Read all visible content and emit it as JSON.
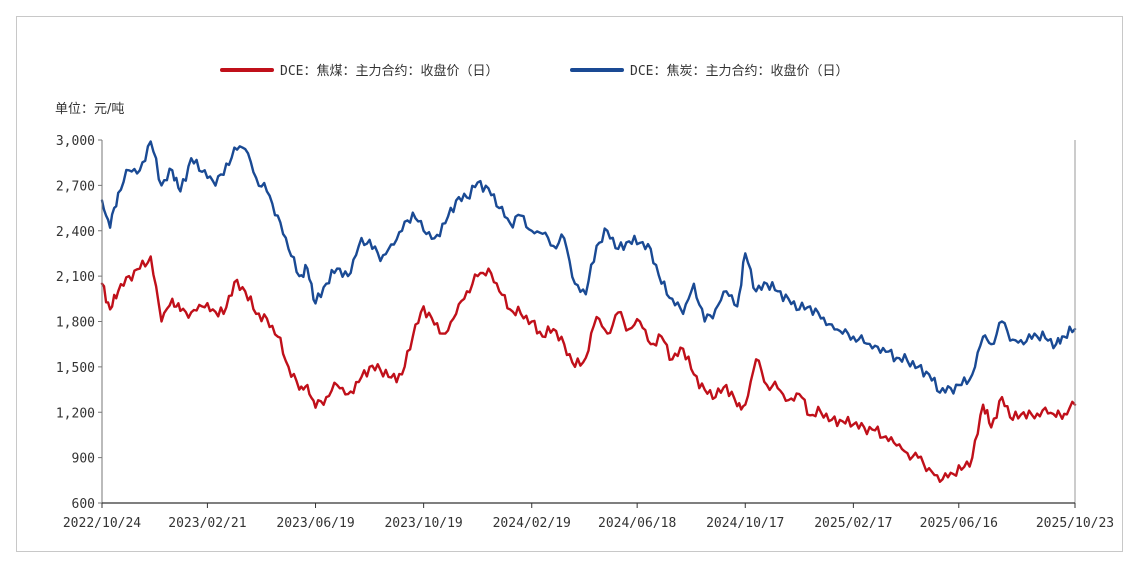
{
  "chart_data": {
    "type": "line",
    "title": "",
    "unit_label": "单位：元/吨",
    "ylim": [
      600,
      3000
    ],
    "yticks": [
      600,
      900,
      1200,
      1500,
      1800,
      2100,
      2400,
      2700,
      3000
    ],
    "ytick_labels": [
      "600",
      "900",
      "1,200",
      "1,500",
      "1,800",
      "2,100",
      "2,400",
      "2,700",
      "3,000"
    ],
    "x_range": [
      0,
      36
    ],
    "x_tick_positions": [
      0,
      3.9,
      7.9,
      11.9,
      15.9,
      19.8,
      23.8,
      27.8,
      31.7,
      36
    ],
    "x_tick_labels": [
      "2022/10/24",
      "2023/02/21",
      "2023/06/19",
      "2023/10/19",
      "2024/02/19",
      "2024/06/18",
      "2024/10/17",
      "2025/02/17",
      "2025/06/16",
      "2025/10/23"
    ],
    "series": [
      {
        "name": "DCE：焦煤：主力合约：收盘价（日）",
        "color": "#c0101a",
        "x": [
          0,
          0.3,
          0.6,
          1.0,
          1.4,
          1.8,
          2.2,
          2.6,
          2.9,
          3.3,
          3.7,
          4.1,
          4.5,
          4.9,
          5.3,
          5.7,
          6.1,
          6.5,
          6.9,
          7.3,
          7.6,
          7.9,
          8.3,
          8.7,
          9.1,
          9.5,
          9.9,
          10.3,
          10.7,
          11.1,
          11.5,
          11.9,
          12.3,
          12.7,
          13.1,
          13.5,
          13.9,
          14.3,
          14.7,
          15.1,
          15.5,
          15.9,
          16.3,
          16.7,
          17.1,
          17.5,
          17.9,
          18.3,
          18.7,
          19.1,
          19.5,
          19.9,
          20.3,
          20.7,
          21.1,
          21.5,
          21.9,
          22.3,
          22.7,
          23.1,
          23.5,
          23.8,
          24.2,
          24.6,
          25.0,
          25.4,
          25.8,
          26.2,
          26.6,
          27.0,
          27.4,
          27.8,
          28.2,
          28.6,
          29.0,
          29.4,
          29.8,
          30.2,
          30.6,
          31.0,
          31.4,
          31.8,
          32.2,
          32.6,
          32.9,
          33.3,
          33.7,
          34.1,
          34.5,
          34.9,
          35.3,
          35.6,
          36.0
        ],
        "values": [
          2050,
          1880,
          2000,
          2100,
          2150,
          2230,
          1800,
          1950,
          1870,
          1860,
          1900,
          1880,
          1850,
          2060,
          2000,
          1850,
          1820,
          1700,
          1500,
          1350,
          1380,
          1230,
          1300,
          1380,
          1320,
          1400,
          1500,
          1480,
          1430,
          1450,
          1700,
          1900,
          1780,
          1720,
          1850,
          2000,
          2100,
          2150,
          2000,
          1880,
          1850,
          1800,
          1700,
          1750,
          1650,
          1500,
          1560,
          1830,
          1720,
          1860,
          1750,
          1800,
          1650,
          1700,
          1550,
          1620,
          1450,
          1350,
          1300,
          1380,
          1240,
          1250,
          1550,
          1380,
          1360,
          1280,
          1320,
          1180,
          1200,
          1150,
          1140,
          1120,
          1100,
          1080,
          1040,
          980,
          930,
          900,
          830,
          740,
          800,
          820,
          900,
          1250,
          1100,
          1300,
          1150,
          1200,
          1160,
          1230,
          1170,
          1190,
          1250
        ]
      },
      {
        "name": "DCE：焦炭：主力合约：收盘价（日）",
        "color": "#1a4a94",
        "x": [
          0,
          0.3,
          0.6,
          1.0,
          1.4,
          1.8,
          2.2,
          2.6,
          2.9,
          3.3,
          3.7,
          4.1,
          4.5,
          4.9,
          5.3,
          5.7,
          6.1,
          6.5,
          6.9,
          7.3,
          7.6,
          7.9,
          8.3,
          8.7,
          9.1,
          9.5,
          9.9,
          10.3,
          10.7,
          11.1,
          11.5,
          11.9,
          12.3,
          12.7,
          13.1,
          13.5,
          13.9,
          14.3,
          14.7,
          15.1,
          15.5,
          15.9,
          16.3,
          16.7,
          17.1,
          17.5,
          17.9,
          18.3,
          18.7,
          19.1,
          19.5,
          19.9,
          20.3,
          20.7,
          21.1,
          21.5,
          21.9,
          22.3,
          22.7,
          23.1,
          23.5,
          23.8,
          24.2,
          24.6,
          25.0,
          25.4,
          25.8,
          26.2,
          26.6,
          27.0,
          27.4,
          27.8,
          28.2,
          28.6,
          29.0,
          29.4,
          29.8,
          30.2,
          30.6,
          31.0,
          31.4,
          31.8,
          32.2,
          32.6,
          32.9,
          33.3,
          33.7,
          34.1,
          34.5,
          34.9,
          35.3,
          35.6,
          36.0
        ],
        "values": [
          2600,
          2420,
          2650,
          2800,
          2800,
          2990,
          2700,
          2800,
          2660,
          2880,
          2790,
          2730,
          2770,
          2950,
          2940,
          2750,
          2660,
          2500,
          2280,
          2100,
          2150,
          1920,
          2050,
          2150,
          2100,
          2300,
          2340,
          2200,
          2310,
          2400,
          2520,
          2400,
          2350,
          2450,
          2600,
          2620,
          2720,
          2680,
          2550,
          2450,
          2500,
          2400,
          2380,
          2300,
          2350,
          2050,
          1980,
          2300,
          2400,
          2280,
          2330,
          2320,
          2280,
          2050,
          1950,
          1850,
          2050,
          1800,
          1880,
          2000,
          1900,
          2250,
          2000,
          2050,
          2000,
          1950,
          1880,
          1900,
          1820,
          1780,
          1720,
          1700,
          1660,
          1640,
          1600,
          1560,
          1540,
          1500,
          1450,
          1330,
          1360,
          1380,
          1450,
          1700,
          1650,
          1800,
          1680,
          1650,
          1720,
          1690,
          1650,
          1700,
          1750
        ]
      }
    ]
  }
}
